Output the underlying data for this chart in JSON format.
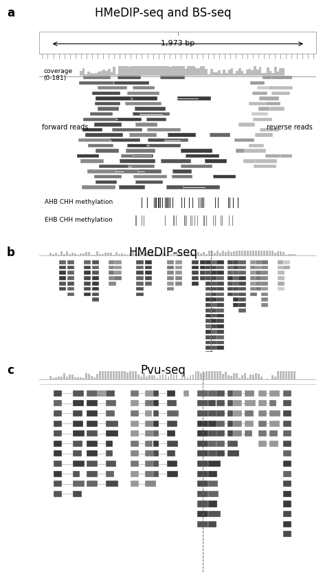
{
  "title_a": "HMeDIP-seq and BS-seq",
  "title_b": "HMeDIP-seq",
  "title_c": "Pvu-seq",
  "label_a": "a",
  "label_b": "b",
  "label_c": "c",
  "bp_label": "1,973 bp",
  "coverage_label": "coverage",
  "range_label": "(0-181)",
  "forward_label": "forward reads",
  "reverse_label": "reverse reads",
  "ahb_label": "AHB CHH methylation",
  "ehb_label": "EHB CHH methylation",
  "bg_color": "#ffffff",
  "dark_gray": "#555555",
  "med_gray": "#888888",
  "light_gray": "#bbbbbb",
  "dashed_line_color": "#666666"
}
